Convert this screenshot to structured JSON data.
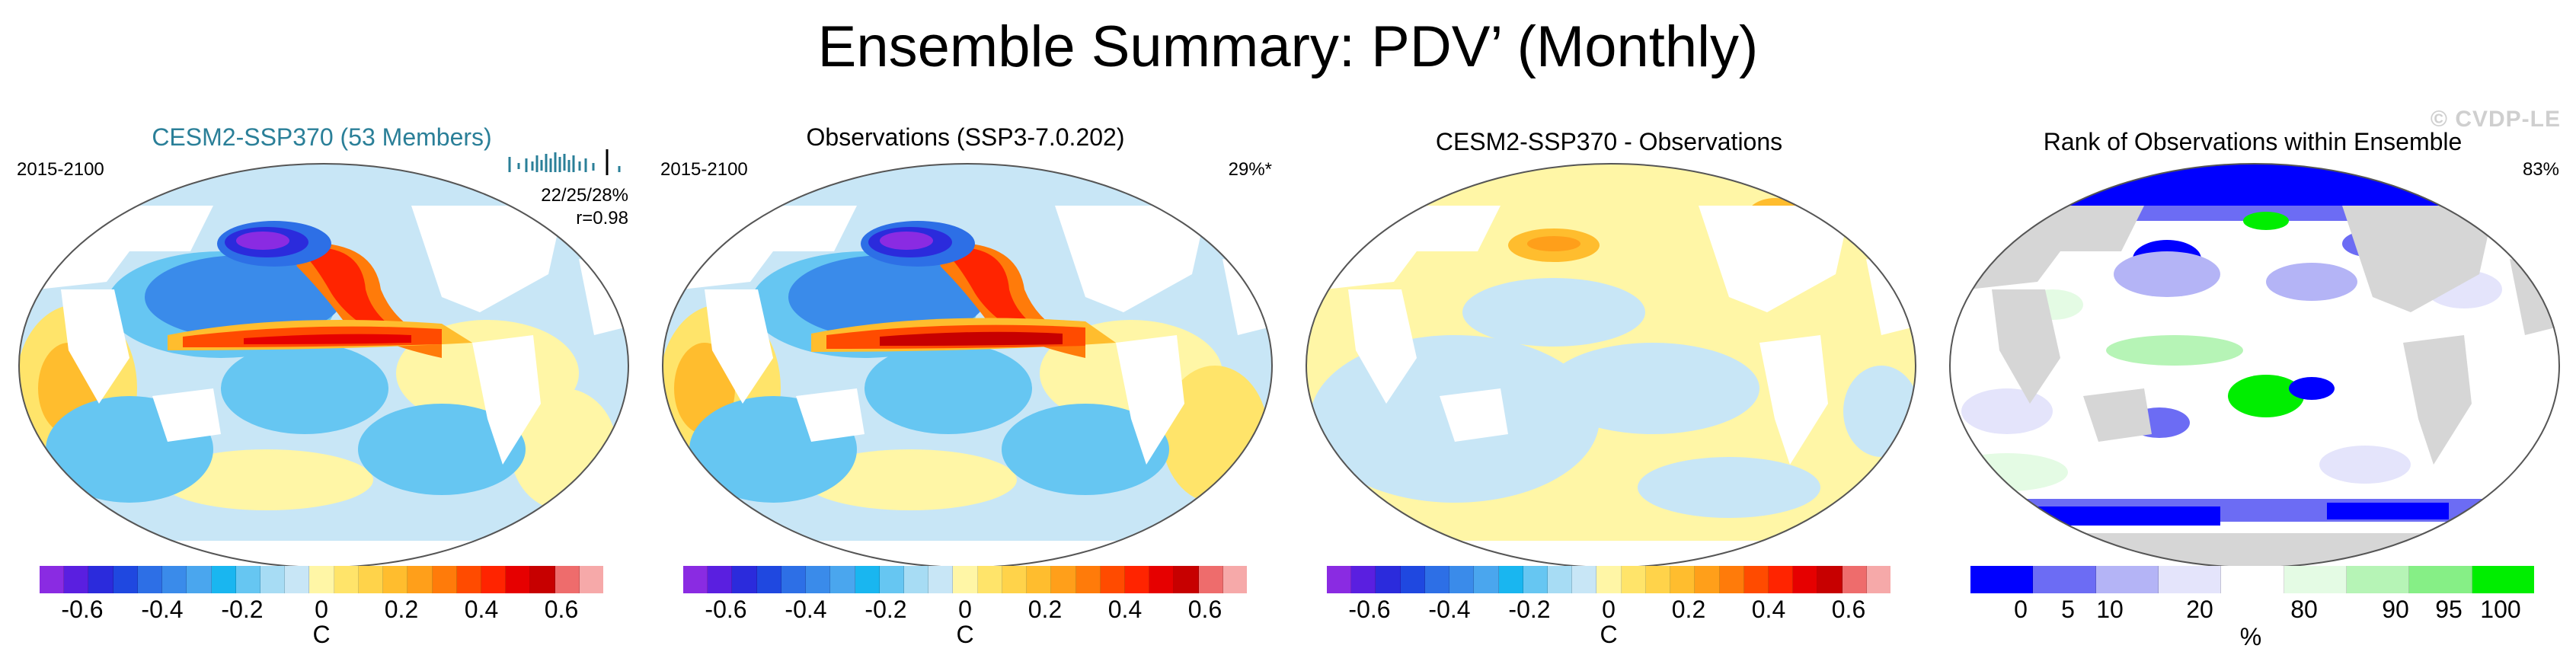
{
  "page": {
    "title": "Ensemble Summary: PDV’ (Monthly)",
    "watermark": "© CVDP-LE"
  },
  "panels": [
    {
      "title": "CESM2-SSP370 (53 Members)",
      "period": "2015-2100",
      "stat1": "22/25/28%",
      "stat2": "r=0.98"
    },
    {
      "title": "Observations (SSP3-7.0.202)",
      "period": "2015-2100",
      "stat1": "29%*"
    },
    {
      "title": "CESM2-SSP370 - Observations"
    },
    {
      "title": "Rank of Observations within Ensemble",
      "stat1": "83%"
    }
  ],
  "colors": {
    "temp_scale": [
      "#8a2be2",
      "#5a1fe0",
      "#2b2bdc",
      "#1f48e0",
      "#2d6fe6",
      "#3a8bea",
      "#4aa6ee",
      "#19b6f0",
      "#66c6f2",
      "#a7dcf4",
      "#c8e6f6",
      "#fff6a6",
      "#ffe46a",
      "#ffd34a",
      "#ffbd2e",
      "#ff9f1a",
      "#ff7b0a",
      "#ff4b00",
      "#ff2400",
      "#e60000",
      "#c70000",
      "#ee6c6c",
      "#f6a9a9"
    ],
    "rank_scale": [
      "#0000ff",
      "#6c6cf4",
      "#b4b4f6",
      "#e4e4fb",
      "#ffffff",
      "#e4fbe4",
      "#b6f4b6",
      "#86ef86",
      "#00ee00"
    ],
    "ocean_low": "#c8e6f6",
    "land": "#ffffff",
    "land_gray": "#d6d6d6"
  },
  "chart_data": [
    {
      "type": "heatmap",
      "title": "CESM2-SSP370 (53 Members)",
      "period": "2015-2100",
      "pattern_stats": "22/25/28%",
      "correlation": 0.98,
      "colorbar": {
        "unit": "C",
        "ticks": [
          -0.6,
          -0.4,
          -0.2,
          0,
          0.2,
          0.4,
          0.6
        ],
        "range": [
          -0.7,
          0.7
        ]
      },
      "features": [
        {
          "region": "Kuroshio extension / NW Pacific",
          "value": -0.7
        },
        {
          "region": "Equatorial central-east Pacific",
          "value": 0.6
        },
        {
          "region": "NE Pacific coastal (horseshoe)",
          "value": 0.45
        },
        {
          "region": "Tropical Indian Ocean",
          "value": 0.2
        },
        {
          "region": "South Pacific subtropics",
          "value": -0.3
        }
      ]
    },
    {
      "type": "heatmap",
      "title": "Observations (SSP3-7.0.202)",
      "period": "2015-2100",
      "variance_explained": "29%*",
      "colorbar": {
        "unit": "C",
        "ticks": [
          -0.6,
          -0.4,
          -0.2,
          0,
          0.2,
          0.4,
          0.6
        ],
        "range": [
          -0.7,
          0.7
        ]
      },
      "features": [
        {
          "region": "Kuroshio extension / NW Pacific",
          "value": -0.7
        },
        {
          "region": "Equatorial central-east Pacific",
          "value": 0.7
        },
        {
          "region": "NE Pacific coastal (horseshoe)",
          "value": 0.5
        },
        {
          "region": "Tropical Indian Ocean",
          "value": 0.2
        },
        {
          "region": "South Pacific subtropics",
          "value": -0.3
        }
      ]
    },
    {
      "type": "heatmap",
      "title": "CESM2-SSP370 - Observations",
      "colorbar": {
        "unit": "C",
        "ticks": [
          -0.6,
          -0.4,
          -0.2,
          0,
          0.2,
          0.4,
          0.6
        ],
        "range": [
          -0.7,
          0.7
        ]
      },
      "features": [
        {
          "region": "North Pacific",
          "value": 0.2
        },
        {
          "region": "Gulf of Alaska",
          "value": 0.3
        },
        {
          "region": "Tropical Pacific",
          "value": -0.1
        },
        {
          "region": "Southern Ocean",
          "value": -0.1
        }
      ]
    },
    {
      "type": "heatmap",
      "title": "Rank of Observations within Ensemble",
      "rank_summary": "83%",
      "colorbar": {
        "unit": "%",
        "ticks": [
          0,
          5,
          10,
          20,
          80,
          90,
          95,
          100
        ]
      },
      "features": [
        {
          "region": "Arctic",
          "value": 0
        },
        {
          "region": "Southern Ocean",
          "value": 0
        },
        {
          "region": "North Pacific",
          "value": 5
        },
        {
          "region": "Tropical South Pacific",
          "value": 100
        },
        {
          "region": "North Atlantic",
          "value": 95
        }
      ]
    }
  ]
}
